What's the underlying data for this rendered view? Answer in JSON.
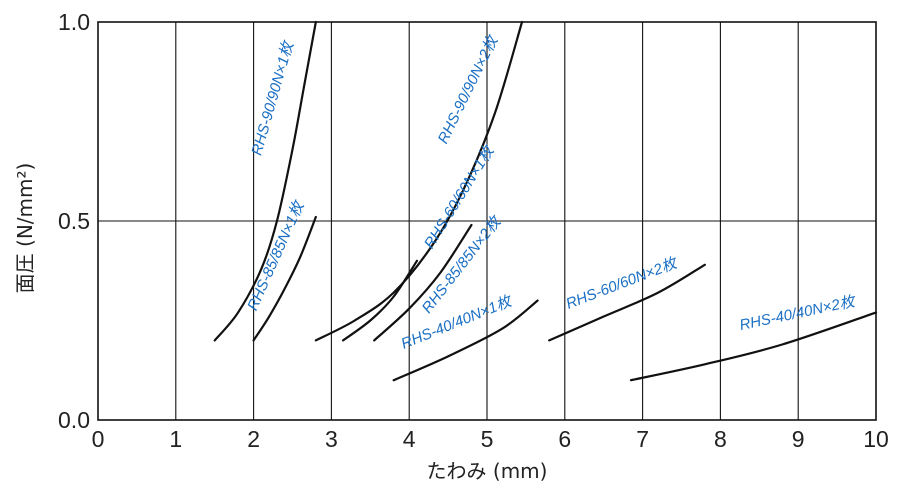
{
  "chart_data": {
    "type": "line",
    "title": "",
    "xlabel": "たわみ (mm)",
    "ylabel": "面圧 (N/mm²)",
    "xlim": [
      0,
      10
    ],
    "ylim": [
      0.0,
      1.0
    ],
    "grid": true,
    "x_ticks": [
      "0",
      "1",
      "2",
      "3",
      "4",
      "5",
      "6",
      "7",
      "8",
      "9",
      "10"
    ],
    "y_ticks": [
      "0.0",
      "0.5",
      "1.0"
    ],
    "series": [
      {
        "name": "RHS-90/90N×1枚",
        "x": [
          1.5,
          1.8,
          2.1,
          2.3,
          2.5,
          2.65,
          2.8
        ],
        "y": [
          0.2,
          0.27,
          0.38,
          0.5,
          0.68,
          0.84,
          1.0
        ]
      },
      {
        "name": "RHS-85/85N×1枚",
        "x": [
          2.0,
          2.2,
          2.4,
          2.6,
          2.8
        ],
        "y": [
          0.2,
          0.26,
          0.33,
          0.41,
          0.51
        ]
      },
      {
        "name": "RHS-90/90N×2枚",
        "x": [
          2.8,
          3.3,
          3.8,
          4.3,
          4.7,
          5.1,
          5.45
        ],
        "y": [
          0.2,
          0.25,
          0.32,
          0.44,
          0.58,
          0.77,
          1.0
        ]
      },
      {
        "name": "RHS-60/60N×1枚",
        "x": [
          3.15,
          3.5,
          3.8,
          4.1
        ],
        "y": [
          0.2,
          0.25,
          0.31,
          0.4
        ]
      },
      {
        "name": "RHS-85/85N×2枚",
        "x": [
          3.55,
          4.0,
          4.4,
          4.8
        ],
        "y": [
          0.2,
          0.28,
          0.37,
          0.49
        ]
      },
      {
        "name": "RHS-40/40N×1枚",
        "x": [
          3.8,
          4.5,
          5.2,
          5.65
        ],
        "y": [
          0.1,
          0.16,
          0.23,
          0.3
        ]
      },
      {
        "name": "RHS-60/60N×2枚",
        "x": [
          5.8,
          6.5,
          7.2,
          7.8
        ],
        "y": [
          0.2,
          0.26,
          0.32,
          0.39
        ]
      },
      {
        "name": "RHS-40/40N×2枚",
        "x": [
          6.85,
          7.8,
          8.8,
          10.0
        ],
        "y": [
          0.1,
          0.14,
          0.19,
          0.27
        ]
      }
    ]
  }
}
